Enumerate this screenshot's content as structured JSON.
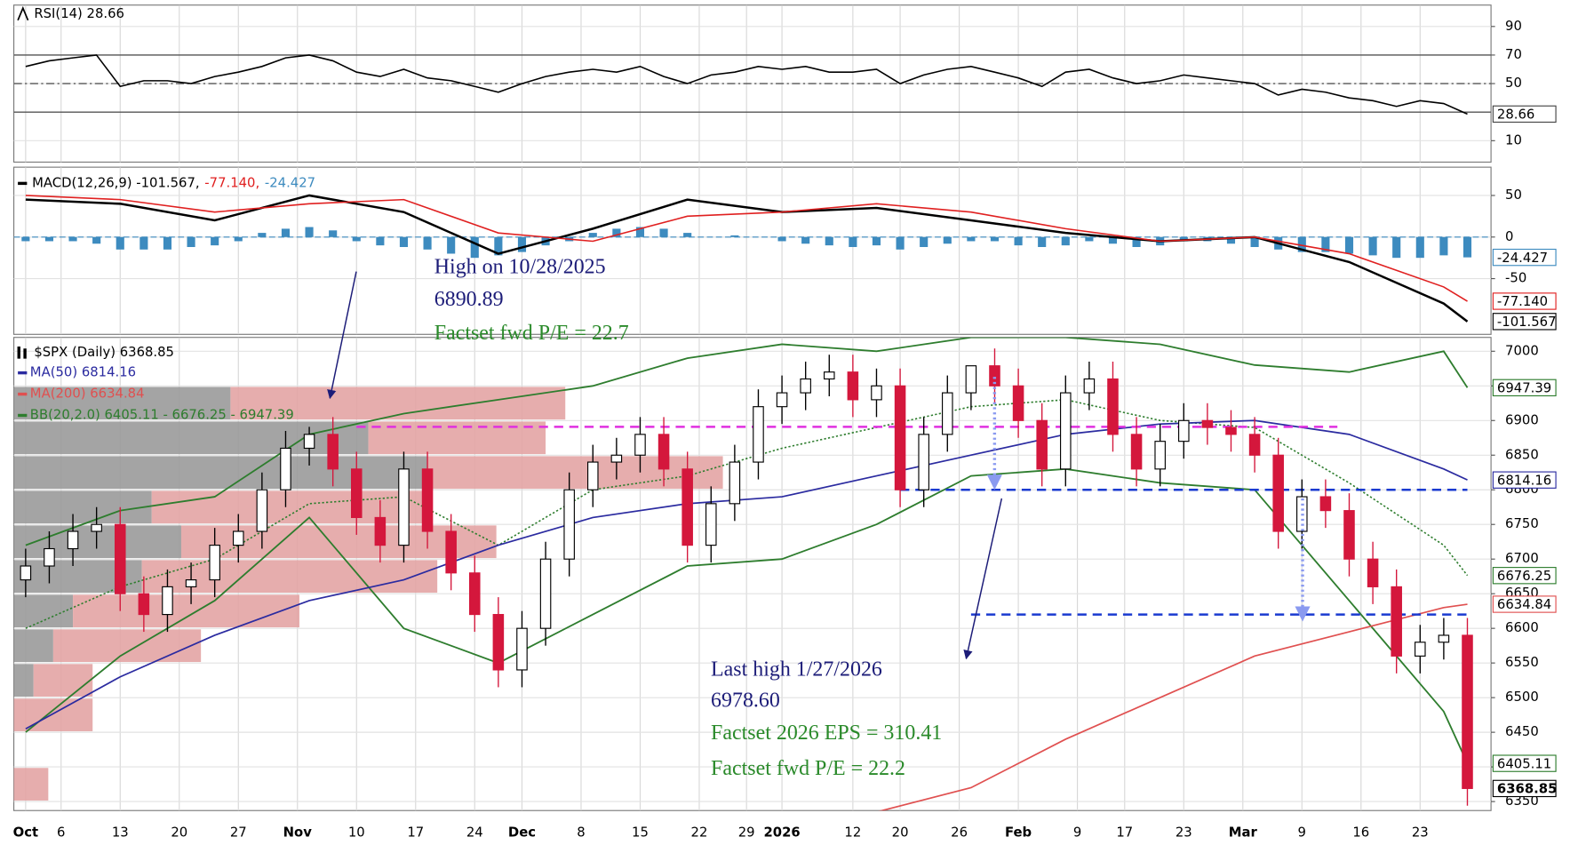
{
  "x_axis": {
    "xlim": [
      -1,
      124
    ],
    "xticks": [
      {
        "value": 0,
        "label": "Oct",
        "bold": true
      },
      {
        "value": 3,
        "label": "6"
      },
      {
        "value": 8,
        "label": "13"
      },
      {
        "value": 13,
        "label": "20"
      },
      {
        "value": 18,
        "label": "27"
      },
      {
        "value": 23,
        "label": "Nov",
        "bold": true
      },
      {
        "value": 28,
        "label": "10"
      },
      {
        "value": 33,
        "label": "17"
      },
      {
        "value": 38,
        "label": "24"
      },
      {
        "value": 42,
        "label": "Dec",
        "bold": true
      },
      {
        "value": 47,
        "label": "8"
      },
      {
        "value": 52,
        "label": "15"
      },
      {
        "value": 57,
        "label": "22"
      },
      {
        "value": 61,
        "label": "29"
      },
      {
        "value": 64,
        "label": "2026",
        "bold": true
      },
      {
        "value": 70,
        "label": "12"
      },
      {
        "value": 74,
        "label": "20"
      },
      {
        "value": 79,
        "label": "26"
      },
      {
        "value": 84,
        "label": "Feb",
        "bold": true
      },
      {
        "value": 89,
        "label": "9"
      },
      {
        "value": 93,
        "label": "17"
      },
      {
        "value": 98,
        "label": "23"
      },
      {
        "value": 103,
        "label": "Mar",
        "bold": true
      },
      {
        "value": 108,
        "label": "9"
      },
      {
        "value": 113,
        "label": "16"
      },
      {
        "value": 118,
        "label": "23"
      }
    ],
    "x": [
      0,
      2,
      4,
      6,
      8,
      10,
      12,
      14,
      16,
      18,
      20,
      22,
      24,
      26,
      28,
      30,
      32,
      34,
      36,
      38,
      40,
      42,
      44,
      46,
      48,
      50,
      52,
      54,
      56,
      58,
      60,
      62,
      64,
      66,
      68,
      70,
      72,
      74,
      76,
      78,
      80,
      82,
      84,
      86,
      88,
      90,
      92,
      94,
      96,
      98,
      100,
      102,
      104,
      106,
      108,
      110,
      112,
      114,
      116,
      118,
      120,
      122
    ],
    "x_coarse": [
      0,
      8,
      16,
      24,
      32,
      40,
      48,
      56,
      64,
      72,
      80,
      88,
      96,
      104,
      112,
      120,
      122
    ],
    "grid": true
  },
  "chart_data": [
    {
      "type": "line",
      "legend": "RSI(14) 28.66",
      "ylim": [
        -5,
        105
      ],
      "yticks": [
        10,
        50,
        70,
        90
      ],
      "levels": [
        70,
        50,
        30
      ],
      "level_color": "#555555",
      "series": [
        {
          "color": "#000000",
          "values": [
            62,
            66,
            68,
            70,
            48,
            52,
            52,
            50,
            55,
            58,
            62,
            68,
            70,
            66,
            58,
            55,
            60,
            54,
            52,
            48,
            44,
            50,
            55,
            58,
            60,
            58,
            62,
            55,
            50,
            56,
            58,
            62,
            60,
            62,
            58,
            58,
            60,
            50,
            56,
            60,
            62,
            58,
            54,
            48,
            58,
            60,
            54,
            50,
            52,
            56,
            54,
            52,
            50,
            42,
            46,
            44,
            40,
            38,
            34,
            38,
            36,
            28.66
          ]
        }
      ]
    },
    {
      "type": "macd",
      "ylim": [
        -117,
        84
      ],
      "yticks": [
        -50,
        0,
        50
      ],
      "series": [
        {
          "name": "MACD(12,26,9) -101.567,",
          "color": "#000000",
          "values": [
            45,
            40,
            20,
            50,
            30,
            -20,
            10,
            45,
            30,
            35,
            20,
            5,
            -5,
            0,
            -30,
            -80,
            -101.567
          ]
        },
        {
          "name": "-77.140,",
          "color": "#e02020",
          "values": [
            50,
            45,
            30,
            40,
            45,
            5,
            -5,
            25,
            30,
            40,
            30,
            10,
            -5,
            0,
            -20,
            -60,
            -77.14
          ],
          "last_label": "-77.140"
        }
      ],
      "histogram": {
        "name": "-24.427",
        "color": "#3d8bbf",
        "values": [
          -5,
          -5,
          -5,
          -8,
          -15,
          -15,
          -15,
          -12,
          -10,
          -5,
          5,
          10,
          12,
          8,
          -5,
          -10,
          -12,
          -15,
          -20,
          -25,
          -22,
          -18,
          -10,
          -5,
          5,
          10,
          12,
          10,
          5,
          0,
          2,
          0,
          -5,
          -8,
          -10,
          -12,
          -10,
          -15,
          -12,
          -8,
          -5,
          -5,
          -10,
          -12,
          -10,
          -5,
          -8,
          -12,
          -10,
          -5,
          -5,
          -8,
          -12,
          -15,
          -18,
          -18,
          -20,
          -22,
          -25,
          -25,
          -22,
          -24.427
        ]
      }
    },
    {
      "type": "candlestick",
      "name": "$SPX (Daily) 6368.85",
      "ylim": [
        6337,
        7020
      ],
      "yticks": [
        6350,
        6400,
        6450,
        6500,
        6550,
        6600,
        6650,
        6700,
        6750,
        6800,
        6850,
        6900,
        6950,
        7000
      ],
      "up_color": "#ffffff",
      "down_color": "#d4173c",
      "open": [
        6670,
        6690,
        6715,
        6740,
        6750,
        6650,
        6620,
        6660,
        6670,
        6720,
        6740,
        6800,
        6860,
        6880,
        6830,
        6760,
        6720,
        6830,
        6740,
        6680,
        6620,
        6540,
        6600,
        6700,
        6800,
        6840,
        6850,
        6880,
        6830,
        6720,
        6780,
        6840,
        6920,
        6940,
        6960,
        6970,
        6930,
        6950,
        6800,
        6880,
        6940,
        6979,
        6950,
        6900,
        6830,
        6940,
        6960,
        6880,
        6830,
        6870,
        6900,
        6890,
        6880,
        6850,
        6740,
        6790,
        6770,
        6700,
        6660,
        6560,
        6580,
        6590
      ],
      "high": [
        6715,
        6740,
        6765,
        6775,
        6775,
        6675,
        6685,
        6695,
        6745,
        6765,
        6825,
        6885,
        6890.89,
        6905,
        6855,
        6785,
        6855,
        6855,
        6765,
        6705,
        6645,
        6625,
        6725,
        6825,
        6865,
        6875,
        6905,
        6905,
        6855,
        6805,
        6865,
        6945,
        6965,
        6985,
        6995,
        6995,
        6975,
        6975,
        6905,
        6965,
        6978.6,
        7004,
        6975,
        6925,
        6965,
        6985,
        6985,
        6905,
        6895,
        6925,
        6925,
        6915,
        6905,
        6875,
        6815,
        6815,
        6795,
        6725,
        6685,
        6605,
        6615,
        6615
      ],
      "low": [
        6645,
        6665,
        6690,
        6715,
        6625,
        6595,
        6595,
        6635,
        6645,
        6695,
        6715,
        6775,
        6835,
        6805,
        6735,
        6695,
        6695,
        6715,
        6655,
        6595,
        6515,
        6515,
        6575,
        6675,
        6775,
        6815,
        6825,
        6805,
        6695,
        6695,
        6755,
        6815,
        6895,
        6915,
        6935,
        6905,
        6905,
        6775,
        6775,
        6855,
        6915,
        6925,
        6875,
        6805,
        6805,
        6915,
        6855,
        6805,
        6805,
        6845,
        6865,
        6855,
        6825,
        6715,
        6715,
        6745,
        6675,
        6635,
        6535,
        6535,
        6555,
        6344
      ],
      "close": [
        6690,
        6715,
        6740,
        6750,
        6650,
        6620,
        6660,
        6670,
        6720,
        6740,
        6800,
        6860,
        6880,
        6830,
        6760,
        6720,
        6830,
        6740,
        6680,
        6620,
        6540,
        6600,
        6700,
        6800,
        6840,
        6850,
        6880,
        6830,
        6720,
        6780,
        6840,
        6920,
        6940,
        6960,
        6970,
        6930,
        6950,
        6800,
        6880,
        6940,
        6979,
        6950,
        6900,
        6830,
        6940,
        6960,
        6880,
        6830,
        6870,
        6900,
        6890,
        6880,
        6850,
        6740,
        6790,
        6770,
        6700,
        6660,
        6560,
        6580,
        6590,
        6368.85
      ],
      "series": [
        {
          "name": "MA(50) 6814.16",
          "color": "#2b2ba0",
          "values": [
            6455,
            6530,
            6590,
            6640,
            6670,
            6720,
            6760,
            6780,
            6790,
            6820,
            6850,
            6880,
            6895,
            6900,
            6880,
            6830,
            6814.16
          ]
        },
        {
          "name": "MA(200) 6634.84",
          "color": "#e05050",
          "values": [
            null,
            null,
            null,
            null,
            null,
            null,
            null,
            null,
            null,
            6335,
            6370,
            6440,
            6500,
            6560,
            6595,
            6630,
            6634.84
          ]
        }
      ],
      "bollinger": {
        "name": "BB(20,2.0) 6405.11 - 6676.25 - 6947.39",
        "color": "#2e7d2e",
        "upper": [
          6720,
          6770,
          6790,
          6880,
          6910,
          6930,
          6950,
          6990,
          7010,
          7000,
          7020,
          7020,
          7010,
          6980,
          6970,
          7000,
          6947.39
        ],
        "middle": [
          6600,
          6660,
          6700,
          6780,
          6790,
          6720,
          6800,
          6820,
          6860,
          6890,
          6920,
          6930,
          6900,
          6890,
          6810,
          6720,
          6676.25
        ],
        "lower": [
          6450,
          6560,
          6640,
          6760,
          6600,
          6550,
          6620,
          6690,
          6700,
          6750,
          6820,
          6830,
          6810,
          6800,
          6640,
          6480,
          6405.11
        ]
      },
      "hlines": [
        {
          "value": 6890.89,
          "color": "#e030e0",
          "x_range": [
            28,
            111
          ]
        },
        {
          "value": 6800,
          "color": "#1a3ad0",
          "x_range": [
            74,
            122
          ]
        },
        {
          "value": 6620,
          "color": "#1a3ad0",
          "x_range": [
            80,
            122
          ]
        }
      ],
      "volume_by_price": {
        "xlim": [
          0,
          1500
        ],
        "bins": [
          6350,
          6400,
          6450,
          6500,
          6550,
          6600,
          6650,
          6700,
          6750,
          6800,
          6850,
          6900,
          6950
        ],
        "series": [
          {
            "color": "#9a9a9a",
            "values": [
              0,
              0,
              0,
              20,
              40,
              60,
              130,
              170,
              140,
              420,
              360,
              220
            ]
          },
          {
            "color": "#e3a4a4",
            "values": [
              35,
              0,
              80,
              60,
              150,
              230,
              300,
              320,
              280,
              300,
              180,
              340
            ]
          }
        ]
      },
      "annotations": [
        {
          "text": "High on 10/28/2025",
          "color": "#1c1c78"
        },
        {
          "text": "6890.89",
          "color": "#1c1c78"
        },
        {
          "text": "Factset fwd P/E = 22.7",
          "color": "#2a8a2a"
        },
        {
          "text": "Last high 1/27/2026",
          "color": "#1c1c78"
        },
        {
          "text": "6978.60",
          "color": "#1c1c78"
        },
        {
          "text": "Factset 2026 EPS = 310.41",
          "color": "#2a8a2a"
        },
        {
          "text": "Factset fwd P/E = 22.2",
          "color": "#2a8a2a"
        }
      ]
    }
  ]
}
